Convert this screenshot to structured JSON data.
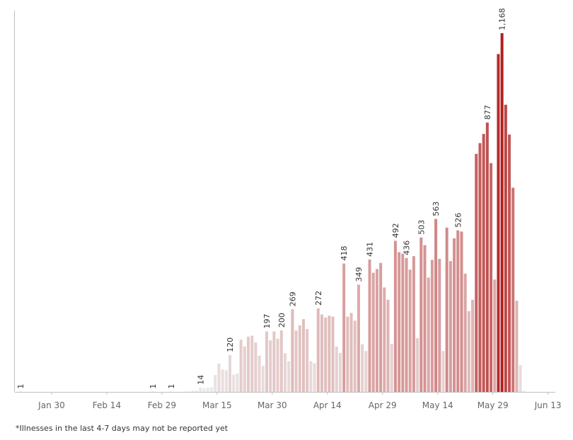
{
  "footnote": "*Illnesses in the last 4-7 days may not be reported yet",
  "chart_data": {
    "type": "bar",
    "title": "",
    "xlabel": "",
    "ylabel": "",
    "x_start": "2020-01-20",
    "x_end": "2020-06-15",
    "ylim": [
      0,
      1230
    ],
    "x_ticks": [
      "Jan 30",
      "Feb 14",
      "Feb 29",
      "Mar 15",
      "Mar 30",
      "Apr 14",
      "Apr 29",
      "May 14",
      "May 29",
      "Jun 13"
    ],
    "grid": false,
    "legend": "none",
    "colors": {
      "low": "#ececec",
      "mid": "#dcaaaa",
      "high": "#b01e1e",
      "label": "#333333",
      "tick": "#666666",
      "axis": "#bfbfbf"
    },
    "bars": [
      {
        "date": "2020-01-21",
        "value": 1,
        "label": "1"
      },
      {
        "date": "2020-02-26",
        "value": 1,
        "label": "1"
      },
      {
        "date": "2020-03-02",
        "value": 1,
        "label": "1"
      },
      {
        "date": "2020-03-06",
        "value": 1
      },
      {
        "date": "2020-03-07",
        "value": 1
      },
      {
        "date": "2020-03-08",
        "value": 4
      },
      {
        "date": "2020-03-09",
        "value": 4
      },
      {
        "date": "2020-03-10",
        "value": 14,
        "label": "14"
      },
      {
        "date": "2020-03-11",
        "value": 12
      },
      {
        "date": "2020-03-12",
        "value": 14
      },
      {
        "date": "2020-03-13",
        "value": 15
      },
      {
        "date": "2020-03-14",
        "value": 55
      },
      {
        "date": "2020-03-15",
        "value": 92
      },
      {
        "date": "2020-03-16",
        "value": 73
      },
      {
        "date": "2020-03-17",
        "value": 70
      },
      {
        "date": "2020-03-18",
        "value": 120,
        "label": "120"
      },
      {
        "date": "2020-03-19",
        "value": 56
      },
      {
        "date": "2020-03-20",
        "value": 60
      },
      {
        "date": "2020-03-21",
        "value": 170
      },
      {
        "date": "2020-03-22",
        "value": 148
      },
      {
        "date": "2020-03-23",
        "value": 180
      },
      {
        "date": "2020-03-24",
        "value": 183
      },
      {
        "date": "2020-03-25",
        "value": 161
      },
      {
        "date": "2020-03-26",
        "value": 118
      },
      {
        "date": "2020-03-27",
        "value": 85
      },
      {
        "date": "2020-03-28",
        "value": 197,
        "label": "197"
      },
      {
        "date": "2020-03-29",
        "value": 168
      },
      {
        "date": "2020-03-30",
        "value": 197
      },
      {
        "date": "2020-03-31",
        "value": 173
      },
      {
        "date": "2020-04-01",
        "value": 200,
        "label": "200"
      },
      {
        "date": "2020-04-02",
        "value": 126
      },
      {
        "date": "2020-04-03",
        "value": 100
      },
      {
        "date": "2020-04-04",
        "value": 269,
        "label": "269"
      },
      {
        "date": "2020-04-05",
        "value": 200
      },
      {
        "date": "2020-04-06",
        "value": 217
      },
      {
        "date": "2020-04-07",
        "value": 237
      },
      {
        "date": "2020-04-08",
        "value": 205
      },
      {
        "date": "2020-04-09",
        "value": 100
      },
      {
        "date": "2020-04-10",
        "value": 93
      },
      {
        "date": "2020-04-11",
        "value": 272,
        "label": "272"
      },
      {
        "date": "2020-04-12",
        "value": 252
      },
      {
        "date": "2020-04-13",
        "value": 242
      },
      {
        "date": "2020-04-14",
        "value": 248
      },
      {
        "date": "2020-04-15",
        "value": 245
      },
      {
        "date": "2020-04-16",
        "value": 148
      },
      {
        "date": "2020-04-17",
        "value": 127
      },
      {
        "date": "2020-04-18",
        "value": 418,
        "label": "418"
      },
      {
        "date": "2020-04-19",
        "value": 245
      },
      {
        "date": "2020-04-20",
        "value": 257
      },
      {
        "date": "2020-04-21",
        "value": 232
      },
      {
        "date": "2020-04-22",
        "value": 349,
        "label": "349"
      },
      {
        "date": "2020-04-23",
        "value": 155
      },
      {
        "date": "2020-04-24",
        "value": 133
      },
      {
        "date": "2020-04-25",
        "value": 431,
        "label": "431"
      },
      {
        "date": "2020-04-26",
        "value": 388
      },
      {
        "date": "2020-04-27",
        "value": 400
      },
      {
        "date": "2020-04-28",
        "value": 420
      },
      {
        "date": "2020-04-29",
        "value": 340
      },
      {
        "date": "2020-04-30",
        "value": 300
      },
      {
        "date": "2020-05-01",
        "value": 156
      },
      {
        "date": "2020-05-02",
        "value": 492,
        "label": "492"
      },
      {
        "date": "2020-05-03",
        "value": 455
      },
      {
        "date": "2020-05-04",
        "value": 450
      },
      {
        "date": "2020-05-05",
        "value": 436,
        "label": "436"
      },
      {
        "date": "2020-05-06",
        "value": 398
      },
      {
        "date": "2020-05-07",
        "value": 442
      },
      {
        "date": "2020-05-08",
        "value": 175
      },
      {
        "date": "2020-05-09",
        "value": 503,
        "label": "503"
      },
      {
        "date": "2020-05-10",
        "value": 478
      },
      {
        "date": "2020-05-11",
        "value": 372
      },
      {
        "date": "2020-05-12",
        "value": 430
      },
      {
        "date": "2020-05-13",
        "value": 563,
        "label": "563"
      },
      {
        "date": "2020-05-14",
        "value": 433
      },
      {
        "date": "2020-05-15",
        "value": 133
      },
      {
        "date": "2020-05-16",
        "value": 535
      },
      {
        "date": "2020-05-17",
        "value": 426
      },
      {
        "date": "2020-05-18",
        "value": 500
      },
      {
        "date": "2020-05-19",
        "value": 526,
        "label": "526"
      },
      {
        "date": "2020-05-20",
        "value": 522
      },
      {
        "date": "2020-05-21",
        "value": 385
      },
      {
        "date": "2020-05-22",
        "value": 263
      },
      {
        "date": "2020-05-23",
        "value": 300
      },
      {
        "date": "2020-05-24",
        "value": 775
      },
      {
        "date": "2020-05-25",
        "value": 810
      },
      {
        "date": "2020-05-26",
        "value": 840
      },
      {
        "date": "2020-05-27",
        "value": 877,
        "label": "877"
      },
      {
        "date": "2020-05-28",
        "value": 745
      },
      {
        "date": "2020-05-29",
        "value": 366
      },
      {
        "date": "2020-05-30",
        "value": 1100
      },
      {
        "date": "2020-05-31",
        "value": 1168,
        "label": "1,168"
      },
      {
        "date": "2020-06-01",
        "value": 935
      },
      {
        "date": "2020-06-02",
        "value": 838
      },
      {
        "date": "2020-06-03",
        "value": 665
      },
      {
        "date": "2020-06-04",
        "value": 297
      },
      {
        "date": "2020-06-05",
        "value": 87
      },
      {
        "date": "2020-06-06",
        "value": 4
      }
    ]
  }
}
